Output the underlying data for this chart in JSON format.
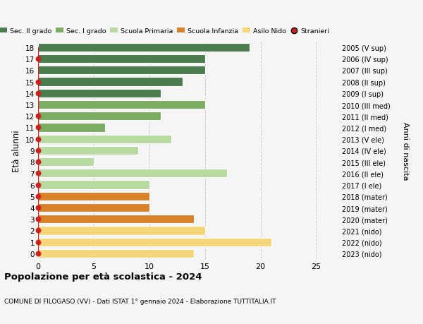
{
  "ages": [
    18,
    17,
    16,
    15,
    14,
    13,
    12,
    11,
    10,
    9,
    8,
    7,
    6,
    5,
    4,
    3,
    2,
    1,
    0
  ],
  "values": [
    19,
    15,
    15,
    13,
    11,
    15,
    11,
    6,
    12,
    9,
    5,
    17,
    10,
    10,
    10,
    14,
    15,
    21,
    14
  ],
  "stranieri_flags": [
    0,
    1,
    0,
    1,
    1,
    0,
    1,
    1,
    1,
    1,
    1,
    1,
    1,
    1,
    1,
    1,
    1,
    1,
    1
  ],
  "bar_colors": [
    "#4a7c4e",
    "#4a7c4e",
    "#4a7c4e",
    "#4a7c4e",
    "#4a7c4e",
    "#7aac62",
    "#7aac62",
    "#7aac62",
    "#b8d9a0",
    "#b8d9a0",
    "#b8d9a0",
    "#b8d9a0",
    "#b8d9a0",
    "#d9822b",
    "#d9822b",
    "#d9822b",
    "#f5d67a",
    "#f5d67a",
    "#f5d67a"
  ],
  "right_labels": [
    "2005 (V sup)",
    "2006 (IV sup)",
    "2007 (III sup)",
    "2008 (II sup)",
    "2009 (I sup)",
    "2010 (III med)",
    "2011 (II med)",
    "2012 (I med)",
    "2013 (V ele)",
    "2014 (IV ele)",
    "2015 (III ele)",
    "2016 (II ele)",
    "2017 (I ele)",
    "2018 (mater)",
    "2019 (mater)",
    "2020 (mater)",
    "2021 (nido)",
    "2022 (nido)",
    "2023 (nido)"
  ],
  "ylabel": "Età alunni",
  "right_ylabel": "Anni di nascita",
  "title": "Popolazione per età scolastica - 2024",
  "subtitle": "COMUNE DI FILOGASO (VV) - Dati ISTAT 1° gennaio 2024 - Elaborazione TUTTITALIA.IT",
  "xlim": [
    0,
    27
  ],
  "xticks": [
    0,
    5,
    10,
    15,
    20,
    25
  ],
  "legend_labels": [
    "Sec. II grado",
    "Sec. I grado",
    "Scuola Primaria",
    "Scuola Infanzia",
    "Asilo Nido",
    "Stranieri"
  ],
  "legend_colors": [
    "#4a7c4e",
    "#7aac62",
    "#b8d9a0",
    "#d9822b",
    "#f5d67a",
    "#cc2222"
  ],
  "stranieri_color": "#cc2222",
  "grid_color": "#cccccc",
  "bg_color": "#f5f5f5"
}
